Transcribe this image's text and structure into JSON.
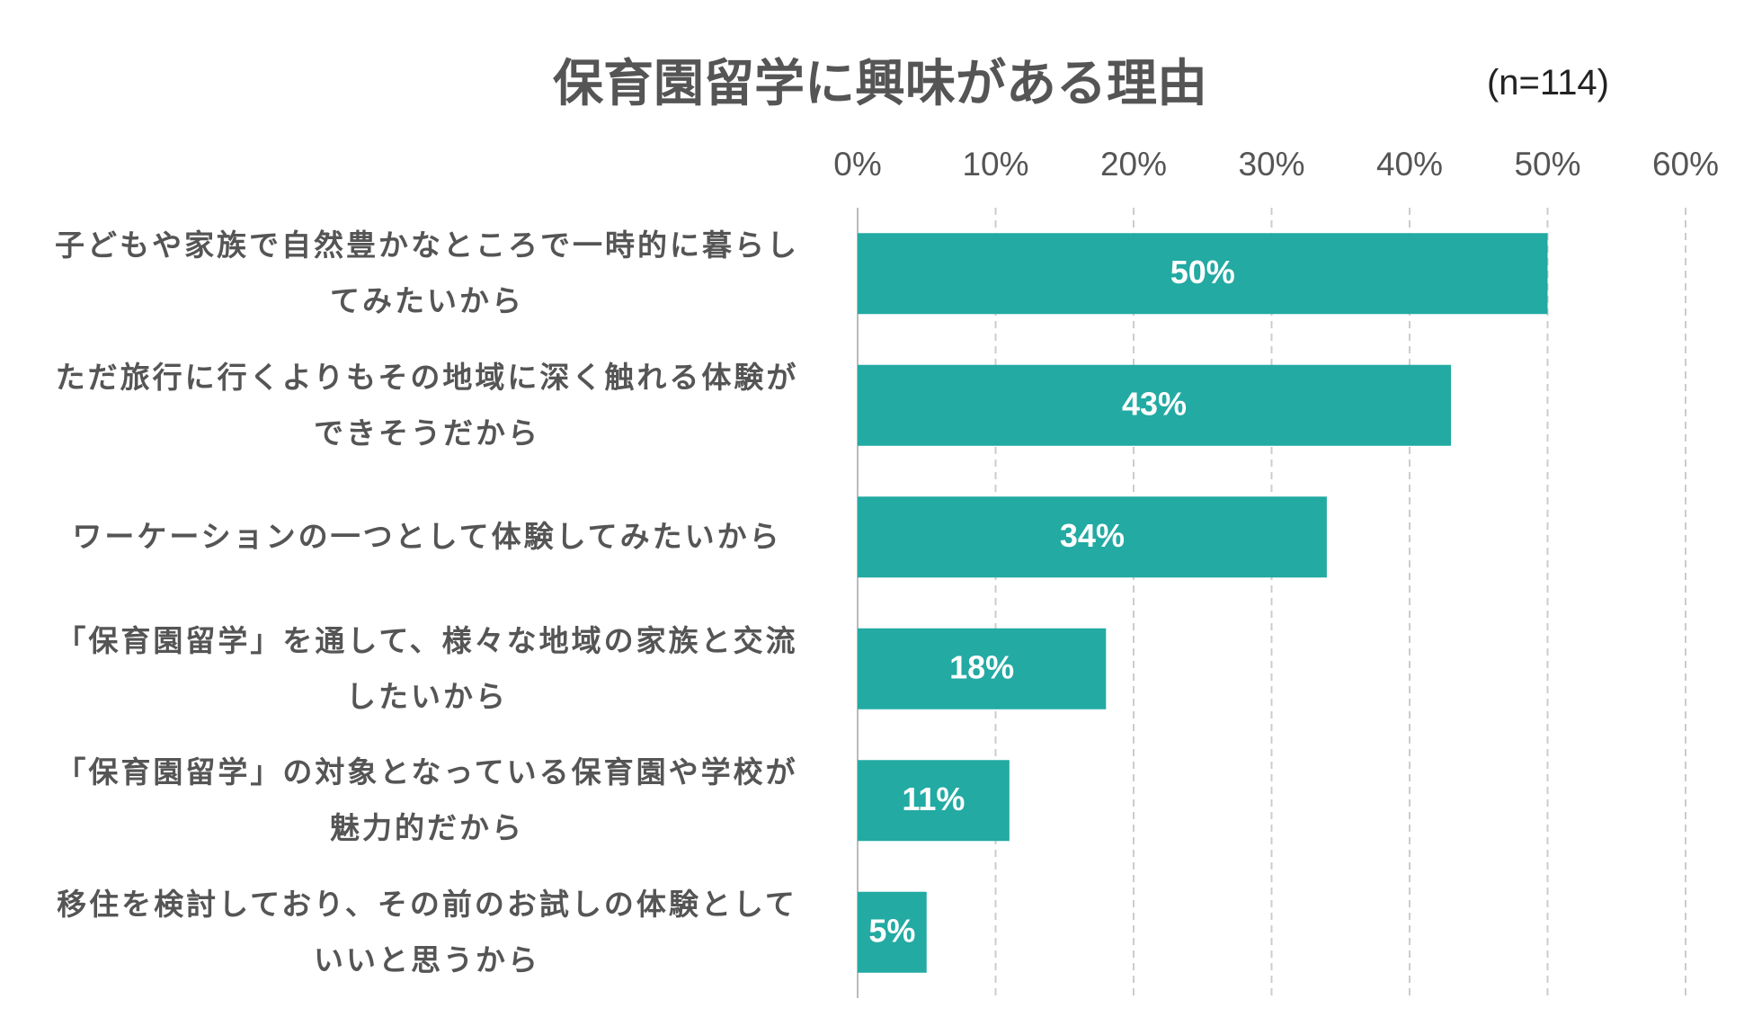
{
  "chart_data": {
    "type": "bar",
    "orientation": "horizontal",
    "title": "保育園留学に興味がある理由",
    "subtitle": "(n=114)",
    "categories": [
      "子どもや家族で自然豊かなところで一時的に暮らし\nてみたいから",
      "ただ旅行に行くよりもその地域に深く触れる体験が\nできそうだから",
      "ワーケーションの一つとして体験してみたいから",
      "「保育園留学」を通して、様々な地域の家族と交流\nしたいから",
      "「保育園留学」の対象となっている保育園や学校が\n魅力的だから",
      "移住を検討しており、その前のお試しの体験として\nいいと思うから"
    ],
    "values": [
      50,
      43,
      34,
      18,
      11,
      5
    ],
    "value_labels": [
      "50%",
      "43%",
      "34%",
      "18%",
      "11%",
      "5%"
    ],
    "color": "#22aaa3",
    "xlim": [
      0,
      60
    ],
    "xticks": [
      {
        "value": 0,
        "label": "0%"
      },
      {
        "value": 10,
        "label": "10%"
      },
      {
        "value": 20,
        "label": "20%"
      },
      {
        "value": 30,
        "label": "30%"
      },
      {
        "value": 40,
        "label": "40%"
      },
      {
        "value": 50,
        "label": "50%"
      },
      {
        "value": 60,
        "label": "60%"
      }
    ],
    "grid": true
  }
}
